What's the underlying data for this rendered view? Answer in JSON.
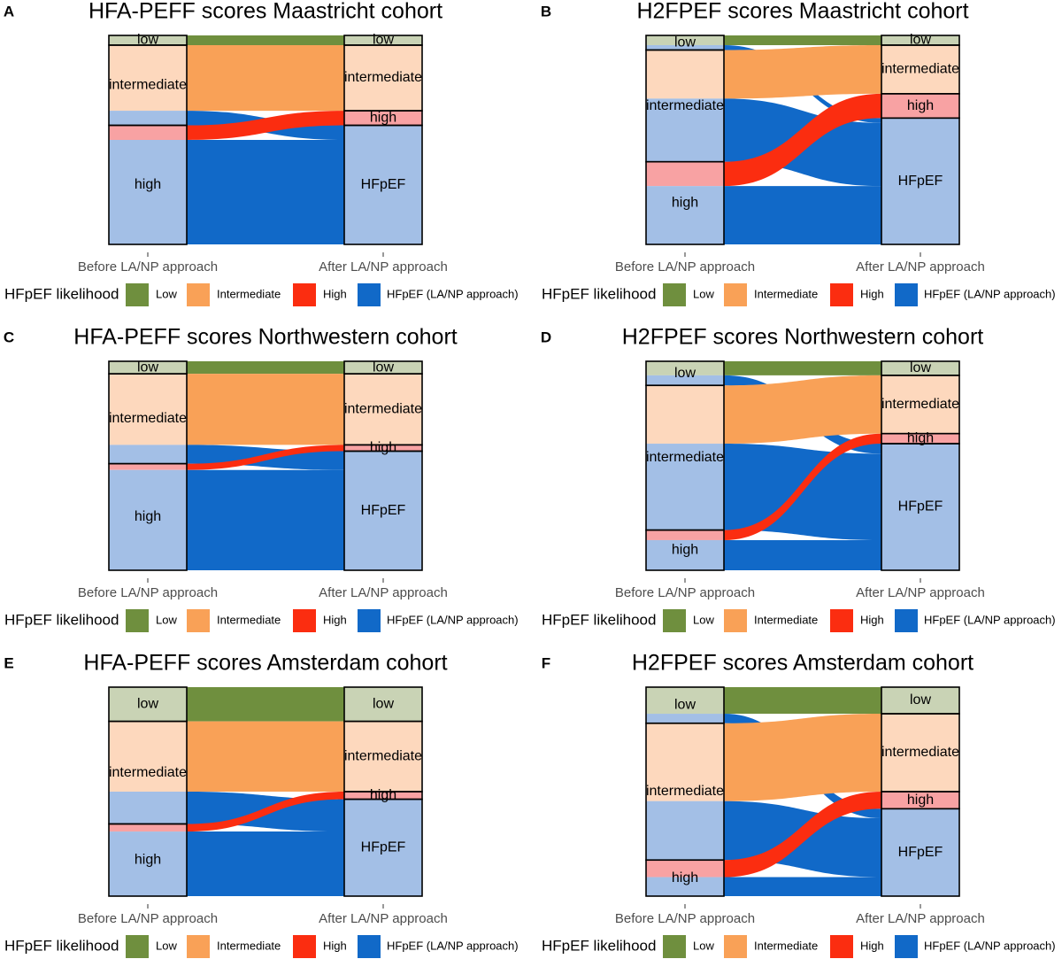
{
  "colors": {
    "low": "#6f8f3e",
    "intermediate": "#f9a157",
    "high": "#fb2d10",
    "hfpef": "#1169c8",
    "bar_low": "#c9d3b5",
    "bar_intermediate": "#fdd8bd",
    "bar_high": "#f8a2a3",
    "bar_hfpef": "#a3bfe6"
  },
  "legend": {
    "title": "HFpEF likelihood",
    "items": [
      {
        "key": "low",
        "label": "Low"
      },
      {
        "key": "intermediate",
        "label": "Intermediate"
      },
      {
        "key": "high",
        "label": "High"
      },
      {
        "key": "hfpef",
        "label": "HFpEF (LA/NP approach)"
      }
    ]
  },
  "chart_data": [
    {
      "type": "alluvial",
      "panel": "A",
      "title": "HFA-PEFF scores Maastricht cohort",
      "axis_categories": [
        "Before LA/NP approach",
        "After LA/NP approach"
      ],
      "left_strata": [
        {
          "label": "low",
          "key": "low",
          "value": 4
        },
        {
          "label": "intermediate",
          "key": "intermediate",
          "value": 33
        },
        {
          "label": "high",
          "key": "high",
          "value": 49
        }
      ],
      "right_strata": [
        {
          "label": "low",
          "key": "low",
          "value": 4
        },
        {
          "label": "intermediate",
          "key": "intermediate",
          "value": 27
        },
        {
          "label": "high",
          "key": "high",
          "value": 6
        },
        {
          "label": "HFpEF",
          "key": "hfpef",
          "value": 49
        }
      ],
      "flows": [
        {
          "from": "low",
          "to": "low",
          "key": "low",
          "value": 4
        },
        {
          "from": "intermediate",
          "to": "intermediate",
          "key": "intermediate",
          "value": 27
        },
        {
          "from": "intermediate",
          "to": "HFpEF",
          "key": "hfpef",
          "value": 6
        },
        {
          "from": "high",
          "to": "high",
          "key": "high",
          "value": 6
        },
        {
          "from": "high",
          "to": "HFpEF",
          "key": "hfpef",
          "value": 43
        }
      ]
    },
    {
      "type": "alluvial",
      "panel": "B",
      "title": "H2FPEF scores Maastricht cohort",
      "axis_categories": [
        "Before LA/NP approach",
        "After LA/NP approach"
      ],
      "left_strata": [
        {
          "label": "low",
          "key": "low",
          "value": 6
        },
        {
          "label": "intermediate",
          "key": "intermediate",
          "value": 46
        },
        {
          "label": "high",
          "key": "high",
          "value": 34
        }
      ],
      "right_strata": [
        {
          "label": "low",
          "key": "low",
          "value": 4
        },
        {
          "label": "intermediate",
          "key": "intermediate",
          "value": 20
        },
        {
          "label": "high",
          "key": "high",
          "value": 10
        },
        {
          "label": "HFpEF",
          "key": "hfpef",
          "value": 52
        }
      ],
      "flows": [
        {
          "from": "low",
          "to": "low",
          "key": "low",
          "value": 4
        },
        {
          "from": "low",
          "to": "HFpEF",
          "key": "hfpef",
          "value": 2
        },
        {
          "from": "intermediate",
          "to": "intermediate",
          "key": "intermediate",
          "value": 20
        },
        {
          "from": "intermediate",
          "to": "HFpEF",
          "key": "hfpef",
          "value": 26
        },
        {
          "from": "high",
          "to": "high",
          "key": "high",
          "value": 10
        },
        {
          "from": "high",
          "to": "HFpEF",
          "key": "hfpef",
          "value": 24
        }
      ]
    },
    {
      "type": "alluvial",
      "panel": "C",
      "title": "HFA-PEFF scores Northwestern cohort",
      "axis_categories": [
        "Before LA/NP approach",
        "After LA/NP approach"
      ],
      "left_strata": [
        {
          "label": "low",
          "key": "low",
          "value": 6
        },
        {
          "label": "intermediate",
          "key": "intermediate",
          "value": 43
        },
        {
          "label": "high",
          "key": "high",
          "value": 51
        }
      ],
      "right_strata": [
        {
          "label": "low",
          "key": "low",
          "value": 6
        },
        {
          "label": "intermediate",
          "key": "intermediate",
          "value": 34
        },
        {
          "label": "high",
          "key": "high",
          "value": 3
        },
        {
          "label": "HFpEF",
          "key": "hfpef",
          "value": 57
        }
      ],
      "flows": [
        {
          "from": "low",
          "to": "low",
          "key": "low",
          "value": 6
        },
        {
          "from": "intermediate",
          "to": "intermediate",
          "key": "intermediate",
          "value": 34
        },
        {
          "from": "intermediate",
          "to": "HFpEF",
          "key": "hfpef",
          "value": 9
        },
        {
          "from": "high",
          "to": "high",
          "key": "high",
          "value": 3
        },
        {
          "from": "high",
          "to": "HFpEF",
          "key": "hfpef",
          "value": 48
        }
      ]
    },
    {
      "type": "alluvial",
      "panel": "D",
      "title": "H2FPEF scores Northwestern cohort",
      "axis_categories": [
        "Before LA/NP approach",
        "After LA/NP approach"
      ],
      "left_strata": [
        {
          "label": "low",
          "key": "low",
          "value": 12
        },
        {
          "label": "intermediate",
          "key": "intermediate",
          "value": 72
        },
        {
          "label": "high",
          "key": "high",
          "value": 20
        }
      ],
      "right_strata": [
        {
          "label": "low",
          "key": "low",
          "value": 7
        },
        {
          "label": "intermediate",
          "key": "intermediate",
          "value": 29
        },
        {
          "label": "high",
          "key": "high",
          "value": 5
        },
        {
          "label": "HFpEF",
          "key": "hfpef",
          "value": 63
        }
      ],
      "flows": [
        {
          "from": "low",
          "to": "low",
          "key": "low",
          "value": 7
        },
        {
          "from": "low",
          "to": "HFpEF",
          "key": "hfpef",
          "value": 5
        },
        {
          "from": "intermediate",
          "to": "intermediate",
          "key": "intermediate",
          "value": 29
        },
        {
          "from": "intermediate",
          "to": "HFpEF",
          "key": "hfpef",
          "value": 43
        },
        {
          "from": "high",
          "to": "high",
          "key": "high",
          "value": 5
        },
        {
          "from": "high",
          "to": "HFpEF",
          "key": "hfpef",
          "value": 15
        }
      ]
    },
    {
      "type": "alluvial",
      "panel": "E",
      "title": "HFA-PEFF scores Amsterdam cohort",
      "axis_categories": [
        "Before LA/NP approach",
        "After LA/NP approach"
      ],
      "left_strata": [
        {
          "label": "low",
          "key": "low",
          "value": 18
        },
        {
          "label": "intermediate",
          "key": "intermediate",
          "value": 54
        },
        {
          "label": "high",
          "key": "high",
          "value": 38
        }
      ],
      "right_strata": [
        {
          "label": "low",
          "key": "low",
          "value": 18
        },
        {
          "label": "intermediate",
          "key": "intermediate",
          "value": 37
        },
        {
          "label": "high",
          "key": "high",
          "value": 4
        },
        {
          "label": "HFpEF",
          "key": "hfpef",
          "value": 51
        }
      ],
      "flows": [
        {
          "from": "low",
          "to": "low",
          "key": "low",
          "value": 18
        },
        {
          "from": "intermediate",
          "to": "intermediate",
          "key": "intermediate",
          "value": 37
        },
        {
          "from": "intermediate",
          "to": "HFpEF",
          "key": "hfpef",
          "value": 17
        },
        {
          "from": "high",
          "to": "high",
          "key": "high",
          "value": 4
        },
        {
          "from": "high",
          "to": "HFpEF",
          "key": "hfpef",
          "value": 34
        }
      ]
    },
    {
      "type": "alluvial",
      "panel": "F",
      "title": "H2FPEF scores Amsterdam cohort",
      "axis_categories": [
        "Before LA/NP approach",
        "After LA/NP approach"
      ],
      "left_strata": [
        {
          "label": "low",
          "key": "low",
          "value": 19
        },
        {
          "label": "intermediate",
          "key": "intermediate",
          "value": 72
        },
        {
          "label": "high",
          "key": "high",
          "value": 19
        }
      ],
      "right_strata": [
        {
          "label": "low",
          "key": "low",
          "value": 14
        },
        {
          "label": "intermediate",
          "key": "intermediate",
          "value": 41
        },
        {
          "label": "high",
          "key": "high",
          "value": 9
        },
        {
          "label": "HFpEF",
          "key": "hfpef",
          "value": 46
        }
      ],
      "flows": [
        {
          "from": "low",
          "to": "low",
          "key": "low",
          "value": 14
        },
        {
          "from": "low",
          "to": "HFpEF",
          "key": "hfpef",
          "value": 5
        },
        {
          "from": "intermediate",
          "to": "intermediate",
          "key": "intermediate",
          "value": 41
        },
        {
          "from": "intermediate",
          "to": "HFpEF",
          "key": "hfpef",
          "value": 31
        },
        {
          "from": "high",
          "to": "high",
          "key": "high",
          "value": 9
        },
        {
          "from": "high",
          "to": "HFpEF",
          "key": "hfpef",
          "value": 10
        }
      ]
    }
  ]
}
